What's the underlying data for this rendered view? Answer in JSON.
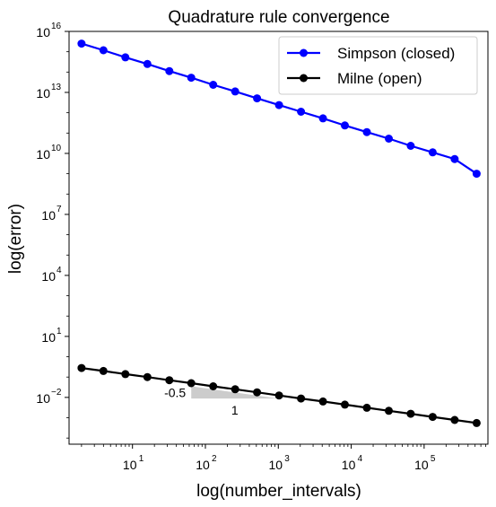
{
  "chart_data": {
    "type": "line",
    "title": "Quadrature rule convergence",
    "xlabel": "log(number_intervals)",
    "ylabel": "log(error)",
    "x_scale": "log",
    "y_scale": "log",
    "xlim": [
      1.35,
      750000
    ],
    "ylim": [
      5e-05,
      1e+16
    ],
    "x_ticks": [
      {
        "value": 10,
        "base": "10",
        "exp": "1"
      },
      {
        "value": 100,
        "base": "10",
        "exp": "2"
      },
      {
        "value": 1000,
        "base": "10",
        "exp": "3"
      },
      {
        "value": 10000,
        "base": "10",
        "exp": "4"
      },
      {
        "value": 100000,
        "base": "10",
        "exp": "5"
      }
    ],
    "y_ticks": [
      {
        "value": 0.01,
        "base": "10",
        "exp": "−2"
      },
      {
        "value": 10,
        "base": "10",
        "exp": "1"
      },
      {
        "value": 10000,
        "base": "10",
        "exp": "4"
      },
      {
        "value": 10000000.0,
        "base": "10",
        "exp": "7"
      },
      {
        "value": 10000000000.0,
        "base": "10",
        "exp": "10"
      },
      {
        "value": 10000000000000.0,
        "base": "10",
        "exp": "13"
      },
      {
        "value": 1e+16,
        "base": "10",
        "exp": "16"
      }
    ],
    "grid": false,
    "legend_position": "top-right",
    "x": [
      2,
      4,
      8,
      16,
      32,
      64,
      128,
      256,
      512,
      1024,
      2048,
      4096,
      8192,
      16384,
      32768,
      65536,
      131072,
      262144,
      524288
    ],
    "series": [
      {
        "name": "Simpson (closed)",
        "color": "#0000ff",
        "marker": "circle",
        "values": [
          2500000000000000.0,
          1180000000000000.0,
          530000000000000.0,
          250000000000000.0,
          112000000000000.0,
          53000000000000.0,
          23600000000000.0,
          11200000000000.0,
          5100000000000.0,
          2370000000000.0,
          1120000000000.0,
          530000000000.0,
          237000000000.0,
          112000000000.0,
          53000000000.0,
          23700000000.0,
          11200000000.0,
          5300000000.0,
          1000000000.0
        ]
      },
      {
        "name": "Milne (open)",
        "color": "#000000",
        "marker": "circle",
        "values": [
          0.28,
          0.2,
          0.14,
          0.1,
          0.07,
          0.05,
          0.035,
          0.025,
          0.0177,
          0.0125,
          0.0088,
          0.0063,
          0.0044,
          0.0031,
          0.0022,
          0.00156,
          0.0011,
          0.00078,
          0.00055
        ]
      }
    ],
    "annotations": [
      {
        "text": "-0.5",
        "kind": "slope-rise"
      },
      {
        "text": "1",
        "kind": "slope-run"
      }
    ],
    "slope_triangle": {
      "x0": 64,
      "x1": 1000,
      "y_top": 0.035,
      "y_bottom": 0.0088,
      "fill": "#cccccc"
    }
  }
}
